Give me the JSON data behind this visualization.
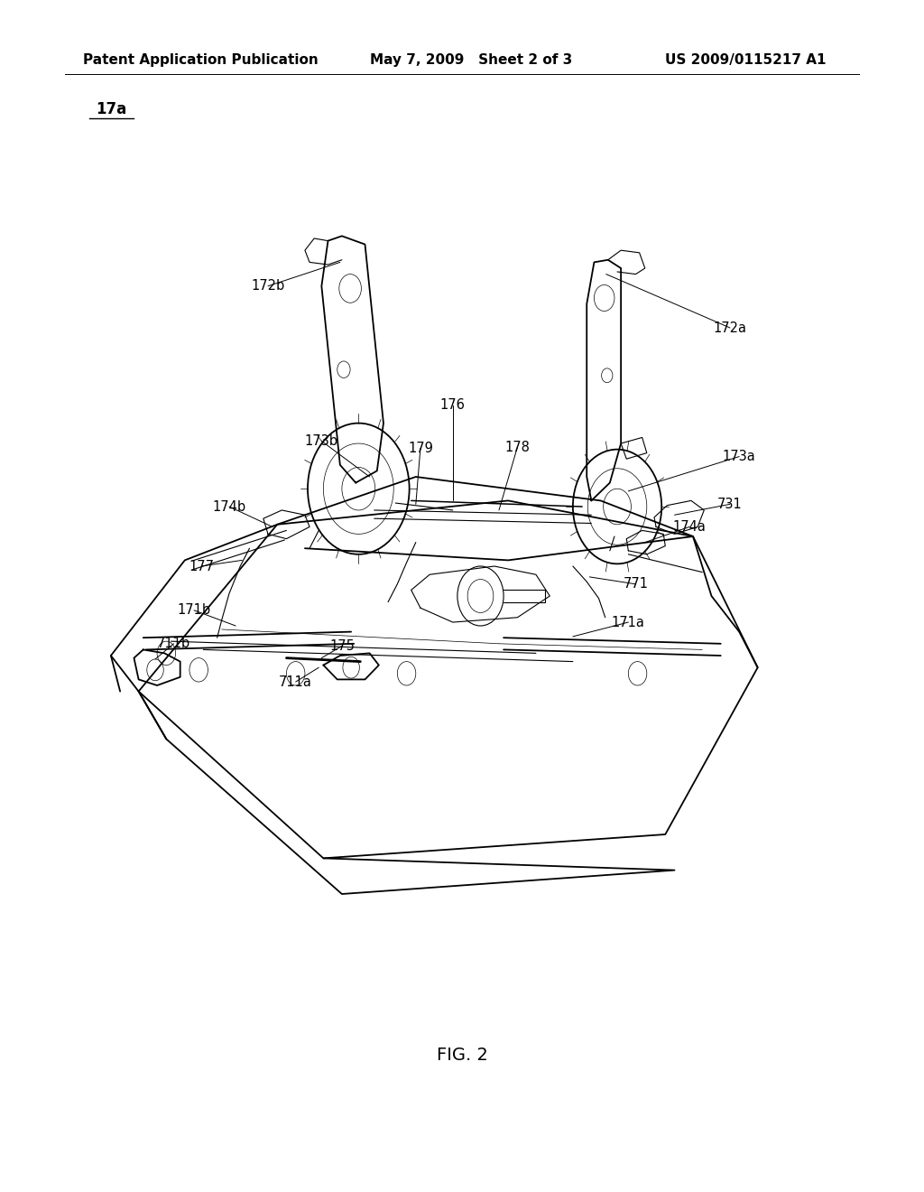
{
  "header_left": "Patent Application Publication",
  "header_mid": "May 7, 2009   Sheet 2 of 3",
  "header_right": "US 2009/0115217 A1",
  "fig_label": "FIG. 2",
  "part_label": "17a",
  "background_color": "#ffffff",
  "text_color": "#000000",
  "header_fontsize": 11,
  "label_fontsize": 10.5,
  "fig_label_fontsize": 14,
  "part_label_fontsize": 12
}
